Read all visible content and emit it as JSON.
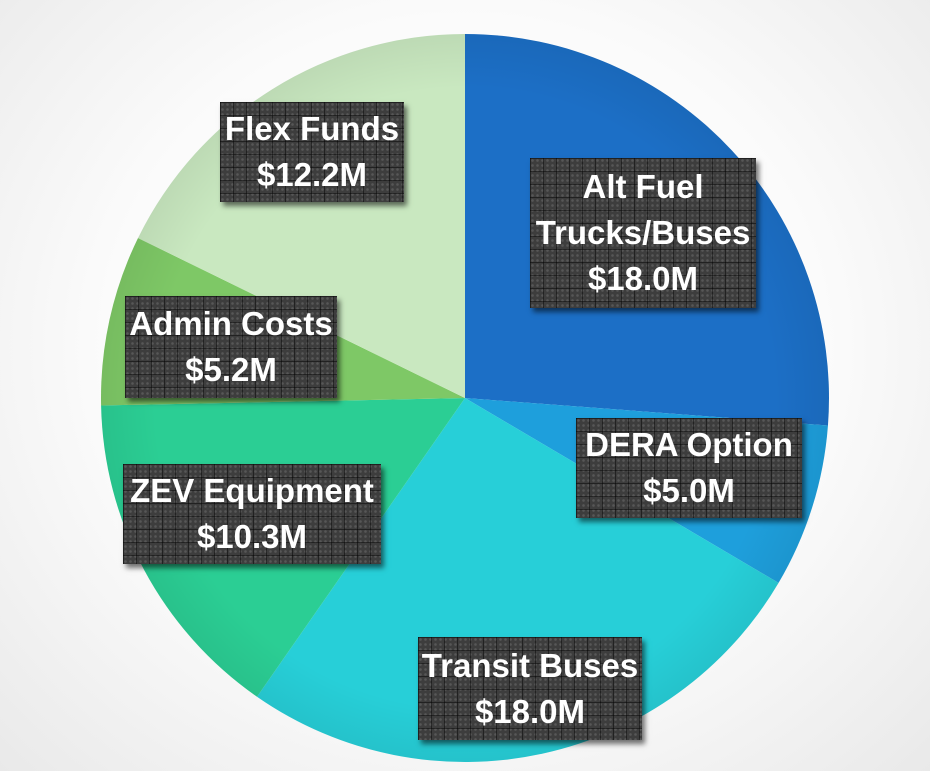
{
  "chart_data": {
    "type": "pie",
    "title": "",
    "slices": [
      {
        "label_lines": [
          "Alt Fuel",
          "Trucks/Buses"
        ],
        "value_text": "$18.0M",
        "value": 18.0,
        "color": "#1c6fc6"
      },
      {
        "label_lines": [
          "DERA Option"
        ],
        "value_text": "$5.0M",
        "value": 5.0,
        "color": "#1e9fdc"
      },
      {
        "label_lines": [
          "Transit Buses"
        ],
        "value_text": "$18.0M",
        "value": 18.0,
        "color": "#27cfd8"
      },
      {
        "label_lines": [
          "ZEV Equipment"
        ],
        "value_text": "$10.3M",
        "value": 10.3,
        "color": "#2bce94"
      },
      {
        "label_lines": [
          "Admin Costs"
        ],
        "value_text": "$5.2M",
        "value": 5.2,
        "color": "#7ec866"
      },
      {
        "label_lines": [
          "Flex Funds"
        ],
        "value_text": "$12.2M",
        "value": 12.2,
        "color": "#c9e8c0"
      }
    ]
  }
}
